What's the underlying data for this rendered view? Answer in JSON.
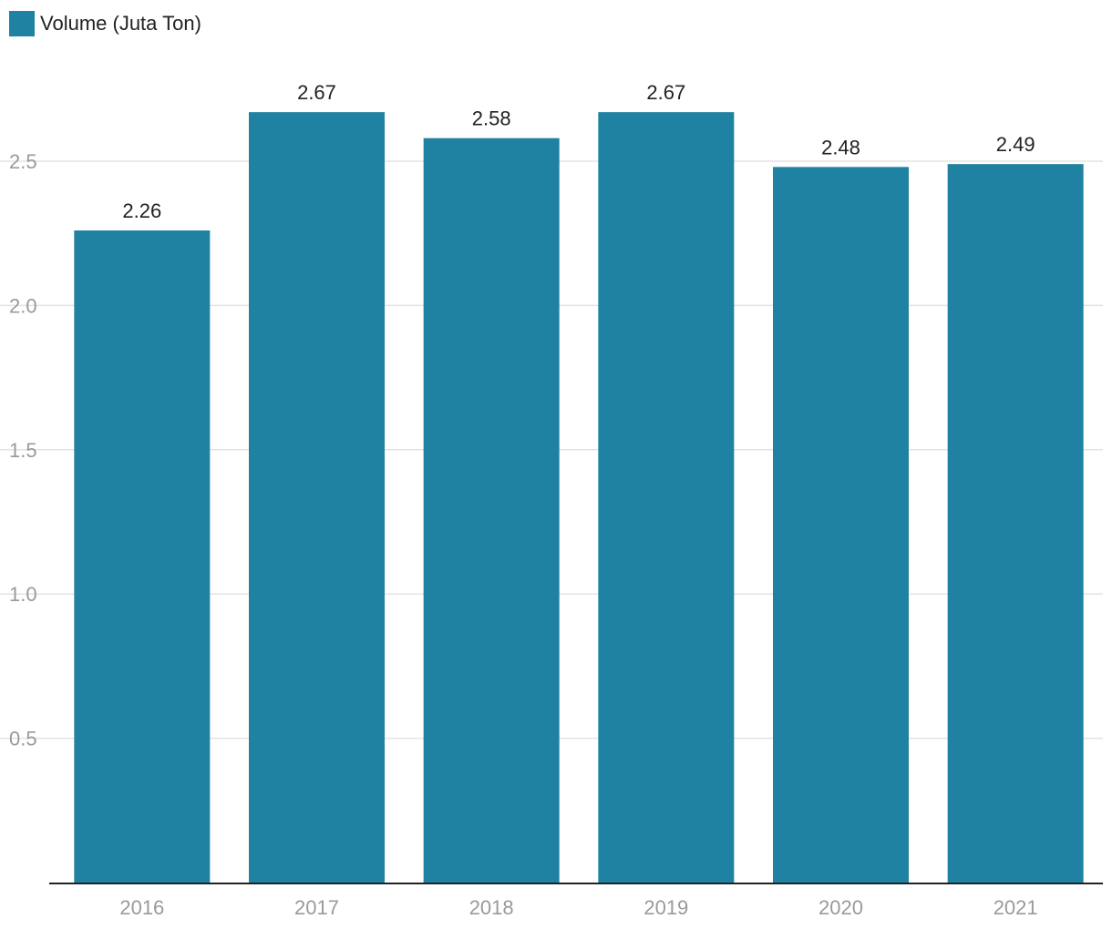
{
  "chart_data": {
    "type": "bar",
    "categories": [
      "2016",
      "2017",
      "2018",
      "2019",
      "2020",
      "2021"
    ],
    "series": [
      {
        "name": "Volume (Juta Ton)",
        "values": [
          2.26,
          2.67,
          2.58,
          2.67,
          2.48,
          2.49
        ],
        "color": "#1f82a2"
      }
    ],
    "data_labels": [
      "2.26",
      "2.67",
      "2.58",
      "2.67",
      "2.48",
      "2.49"
    ],
    "y_ticks": [
      0.5,
      1.0,
      1.5,
      2.0,
      2.5
    ],
    "y_tick_labels": [
      "0.5",
      "1.0",
      "1.5",
      "2.0",
      "2.5"
    ],
    "ylim": [
      0,
      2.5
    ],
    "grid": true,
    "legend_position": "top-left",
    "colors": {
      "bar": "#1f82a2",
      "grid": "#e3e3e3",
      "axis": "#222222",
      "tick_text": "#9a9a9a",
      "label_text": "#222222"
    }
  }
}
